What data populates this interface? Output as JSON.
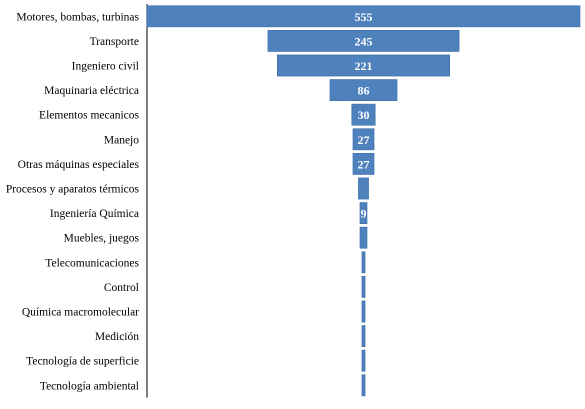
{
  "chart_data": {
    "type": "bar",
    "subtype": "funnel",
    "categories": [
      "Motores, bombas, turbinas",
      "Transporte",
      "Ingeniero civil",
      "Maquinaria eléctrica",
      "Elementos mecanicos",
      "Manejo",
      "Otras máquinas especiales",
      "Procesos y aparatos térmicos",
      "Ingeniería Química",
      "Muebles, juegos",
      "Telecomunicaciones",
      "Control",
      "Química macromolecular",
      "Medición",
      "Tecnología de superficie ",
      "Tecnología  ambiental"
    ],
    "values": [
      555,
      245,
      221,
      86,
      30,
      27,
      27,
      13,
      9,
      9,
      4,
      4,
      4,
      4,
      4,
      4
    ],
    "data_labels": [
      "555",
      "245",
      "221",
      "86",
      "30",
      "27",
      "27",
      "",
      "9",
      "",
      "",
      "",
      "",
      "",
      "",
      ""
    ],
    "title": "",
    "xlabel": "",
    "ylabel": "",
    "xlim": [
      0,
      555
    ],
    "grid": false,
    "legend": "none",
    "bar_color": "#4f81bd",
    "bar_border_color": "#3a6ea8",
    "label_color": "#ffffff",
    "axis_color": "#000000"
  }
}
